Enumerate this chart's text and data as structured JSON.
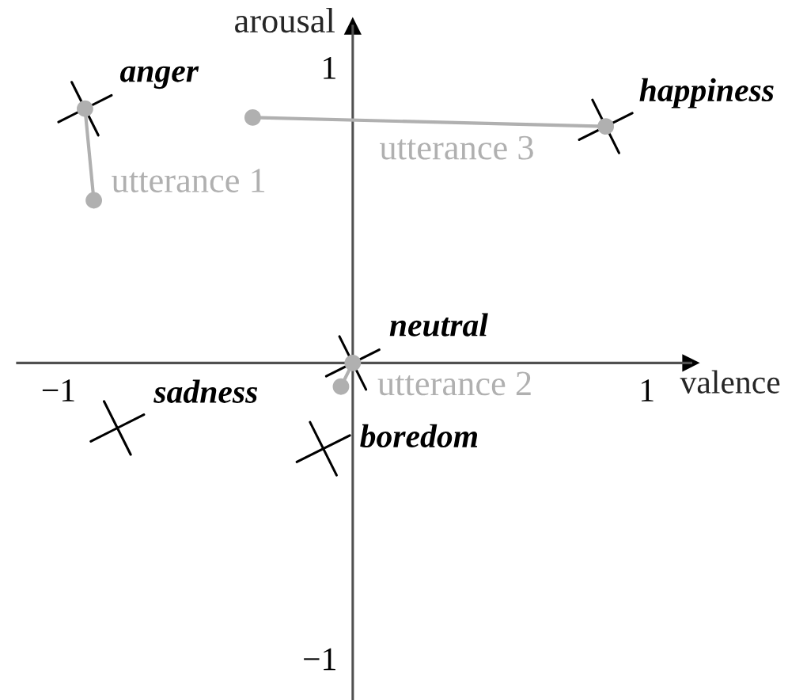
{
  "chart_data": {
    "type": "scatter",
    "xlabel": "valence",
    "ylabel": "arousal",
    "xlim": [
      -1.14,
      1.15
    ],
    "ylim": [
      -1.14,
      1.14
    ],
    "xticks": [
      {
        "value": -1,
        "label": "−1"
      },
      1
    ],
    "yticks": [
      {
        "value": -1,
        "label": "−1"
      },
      1
    ],
    "grid": false,
    "series": [
      {
        "name": "anger",
        "marker": "cross",
        "color": "#000000",
        "x": [
          -0.91
        ],
        "values": [
          0.86
        ]
      },
      {
        "name": "happiness",
        "marker": "cross",
        "color": "#000000",
        "x": [
          0.86
        ],
        "values": [
          0.8
        ]
      },
      {
        "name": "neutral",
        "marker": "cross",
        "color": "#000000",
        "x": [
          0.0
        ],
        "values": [
          0.0
        ]
      },
      {
        "name": "sadness",
        "marker": "cross",
        "color": "#000000",
        "x": [
          -0.8
        ],
        "values": [
          -0.22
        ]
      },
      {
        "name": "boredom",
        "marker": "cross",
        "color": "#000000",
        "x": [
          -0.1
        ],
        "values": [
          -0.29
        ]
      },
      {
        "name": "utterance 1",
        "type": "line",
        "marker": "circle",
        "color": "#b0b0b0",
        "x": [
          -0.88,
          -0.91
        ],
        "values": [
          0.55,
          0.86
        ]
      },
      {
        "name": "utterance 2",
        "type": "line",
        "marker": "circle",
        "color": "#b0b0b0",
        "x": [
          -0.04,
          0.0
        ],
        "values": [
          -0.08,
          0.0
        ]
      },
      {
        "name": "utterance 3",
        "type": "line",
        "marker": "circle",
        "color": "#b0b0b0",
        "x": [
          -0.34,
          0.86
        ],
        "values": [
          0.83,
          0.8
        ]
      }
    ]
  }
}
